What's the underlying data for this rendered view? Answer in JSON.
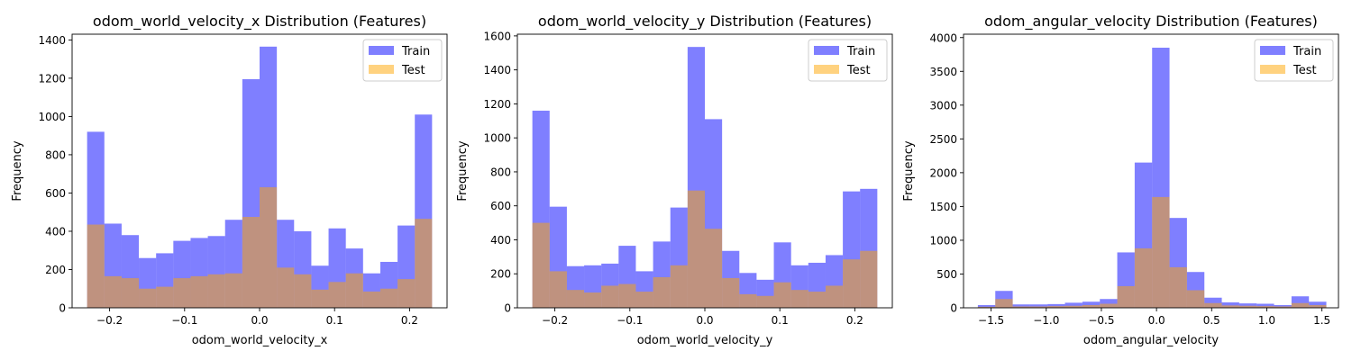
{
  "colors": {
    "train": "#0000ff",
    "test": "#ffa500"
  },
  "chart_data": [
    {
      "type": "bar",
      "title": "odom_world_velocity_x Distribution (Features)",
      "xlabel": "odom_world_velocity_x",
      "ylabel": "Frequency",
      "xlim": [
        -0.25,
        0.25
      ],
      "ylim": [
        0,
        1430
      ],
      "xticks": [
        -0.2,
        -0.1,
        0.0,
        0.1,
        0.2
      ],
      "xtick_labels": [
        "−0.2",
        "−0.1",
        "0.0",
        "0.1",
        "0.2"
      ],
      "yticks": [
        0,
        200,
        400,
        600,
        800,
        1000,
        1200,
        1400
      ],
      "ytick_labels": [
        "0",
        "200",
        "400",
        "600",
        "800",
        "1000",
        "1200",
        "1400"
      ],
      "bin_edges": [
        -0.23,
        -0.207,
        -0.184,
        -0.161,
        -0.138,
        -0.115,
        -0.092,
        -0.069,
        -0.046,
        -0.023,
        0.0,
        0.023,
        0.046,
        0.069,
        0.092,
        0.115,
        0.138,
        0.161,
        0.184,
        0.207,
        0.23
      ],
      "legend": {
        "position": "top-right",
        "entries": [
          "Train",
          "Test"
        ]
      },
      "series": [
        {
          "name": "Train",
          "values": [
            920,
            440,
            380,
            260,
            285,
            350,
            365,
            375,
            460,
            1195,
            1365,
            460,
            400,
            220,
            415,
            310,
            180,
            240,
            430,
            1010
          ]
        },
        {
          "name": "Test",
          "values": [
            435,
            165,
            155,
            100,
            110,
            155,
            165,
            175,
            180,
            475,
            630,
            210,
            175,
            95,
            135,
            180,
            85,
            100,
            150,
            465
          ]
        }
      ]
    },
    {
      "type": "bar",
      "title": "odom_world_velocity_y Distribution (Features)",
      "xlabel": "odom_world_velocity_y",
      "ylabel": "Frequency",
      "xlim": [
        -0.25,
        0.25
      ],
      "ylim": [
        0,
        1610
      ],
      "xticks": [
        -0.2,
        -0.1,
        0.0,
        0.1,
        0.2
      ],
      "xtick_labels": [
        "−0.2",
        "−0.1",
        "0.0",
        "0.1",
        "0.2"
      ],
      "yticks": [
        0,
        200,
        400,
        600,
        800,
        1000,
        1200,
        1400,
        1600
      ],
      "ytick_labels": [
        "0",
        "200",
        "400",
        "600",
        "800",
        "1000",
        "1200",
        "1400",
        "1600"
      ],
      "bin_edges": [
        -0.23,
        -0.207,
        -0.184,
        -0.161,
        -0.138,
        -0.115,
        -0.092,
        -0.069,
        -0.046,
        -0.023,
        0.0,
        0.023,
        0.046,
        0.069,
        0.092,
        0.115,
        0.138,
        0.161,
        0.184,
        0.207,
        0.23
      ],
      "legend": {
        "position": "top-right",
        "entries": [
          "Train",
          "Test"
        ]
      },
      "series": [
        {
          "name": "Train",
          "values": [
            1160,
            595,
            245,
            250,
            260,
            365,
            215,
            390,
            590,
            1535,
            1110,
            335,
            205,
            165,
            385,
            250,
            265,
            310,
            685,
            700
          ]
        },
        {
          "name": "Test",
          "values": [
            500,
            215,
            105,
            90,
            130,
            140,
            95,
            180,
            250,
            690,
            465,
            175,
            80,
            70,
            150,
            105,
            95,
            130,
            285,
            335
          ]
        }
      ]
    },
    {
      "type": "bar",
      "title": "odom_angular_velocity Distribution (Features)",
      "xlabel": "odom_angular_velocity",
      "ylabel": "Frequency",
      "xlim": [
        -1.75,
        1.65
      ],
      "ylim": [
        0,
        4050
      ],
      "xticks": [
        -1.5,
        -1.0,
        -0.5,
        0.0,
        0.5,
        1.0,
        1.5
      ],
      "xtick_labels": [
        "−1.5",
        "−1.0",
        "−0.5",
        "0.0",
        "0.5",
        "1.0",
        "1.5"
      ],
      "yticks": [
        0,
        500,
        1000,
        1500,
        2000,
        2500,
        3000,
        3500,
        4000
      ],
      "ytick_labels": [
        "0",
        "500",
        "1000",
        "1500",
        "2000",
        "2500",
        "3000",
        "3500",
        "4000"
      ],
      "bin_edges": [
        -1.62,
        -1.462,
        -1.304,
        -1.146,
        -0.988,
        -0.83,
        -0.672,
        -0.514,
        -0.356,
        -0.198,
        -0.04,
        0.118,
        0.276,
        0.434,
        0.592,
        0.75,
        0.908,
        1.066,
        1.224,
        1.382,
        1.54
      ],
      "legend": {
        "position": "top-right",
        "entries": [
          "Train",
          "Test"
        ]
      },
      "series": [
        {
          "name": "Train",
          "values": [
            40,
            250,
            50,
            50,
            55,
            75,
            90,
            130,
            820,
            2150,
            3850,
            1330,
            530,
            150,
            80,
            65,
            60,
            40,
            170,
            90
          ]
        },
        {
          "name": "Test",
          "values": [
            15,
            130,
            20,
            20,
            25,
            30,
            40,
            60,
            320,
            880,
            1640,
            600,
            260,
            70,
            35,
            30,
            25,
            20,
            70,
            40
          ]
        }
      ]
    }
  ]
}
